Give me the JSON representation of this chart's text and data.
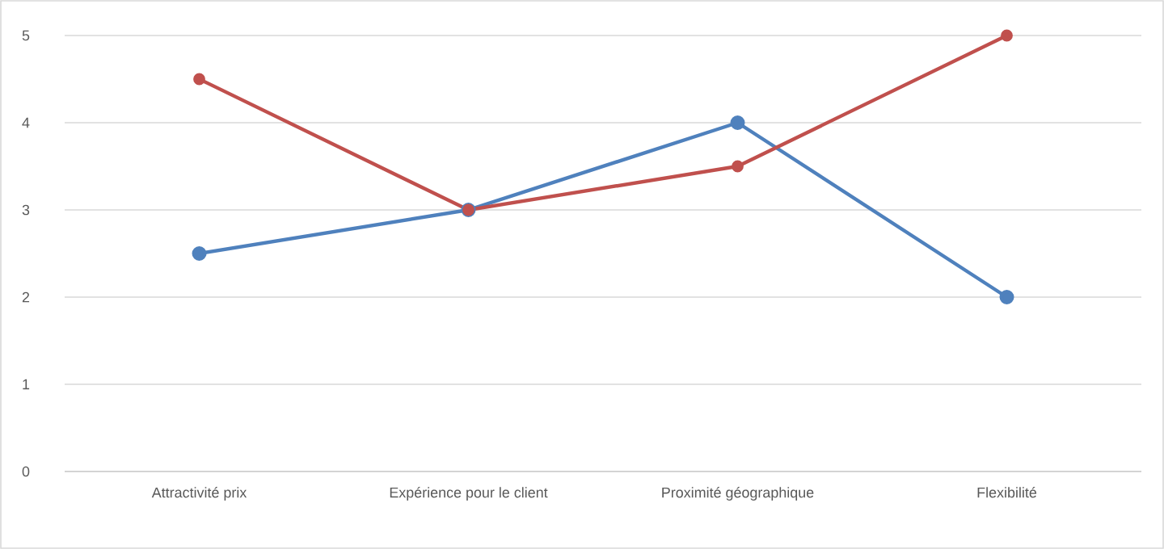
{
  "chart_data": {
    "type": "line",
    "categories": [
      "Attractivité prix",
      "Expérience pour le client",
      "Proximité géographique",
      "Flexibilité"
    ],
    "series": [
      {
        "color": "#4f81bd",
        "values": [
          2.5,
          3,
          4,
          2
        ]
      },
      {
        "color": "#c0504d",
        "values": [
          4.5,
          3,
          3.5,
          5
        ]
      }
    ],
    "ylim": [
      0,
      5
    ],
    "yticks": [
      0,
      1,
      2,
      3,
      4,
      5
    ],
    "grid": "y",
    "marker": "circle",
    "line_style": "solid"
  }
}
